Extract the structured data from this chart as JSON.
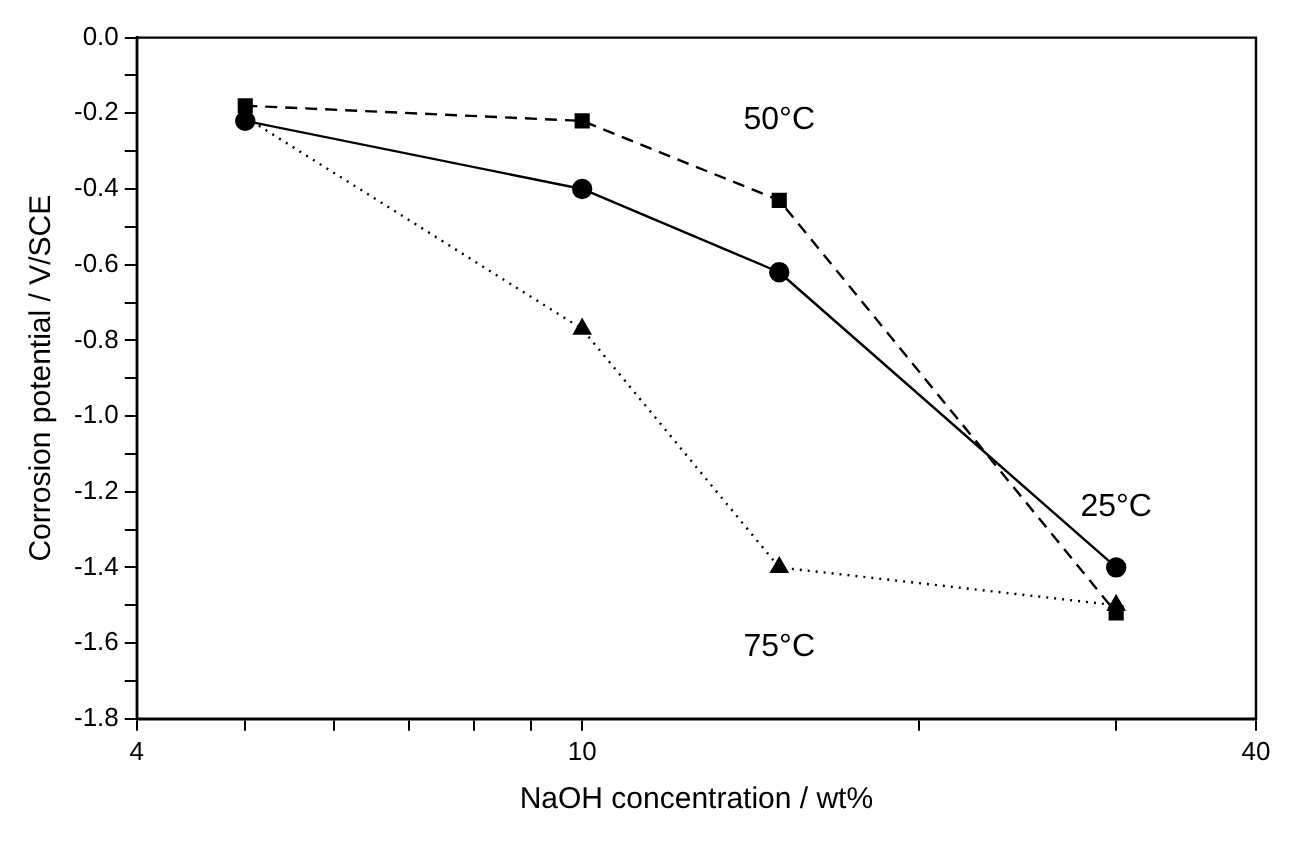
{
  "chart_data": {
    "type": "line",
    "xlabel": "NaOH concentration / wt%",
    "ylabel": "Corrosion potential / V/SCE",
    "x": [
      5,
      10,
      15,
      30
    ],
    "series": [
      {
        "name": "25°C",
        "color": "#000000",
        "values": [
          -0.22,
          -0.4,
          -0.62,
          -1.4
        ],
        "marker": "circle",
        "line_style": "solid"
      },
      {
        "name": "50°C",
        "color": "#000000",
        "values": [
          -0.18,
          -0.22,
          -0.43,
          -1.52
        ],
        "marker": "square",
        "line_style": "dashed"
      },
      {
        "name": "75°C",
        "color": "#000000",
        "values": [
          -0.21,
          -0.77,
          -1.4,
          -1.5
        ],
        "marker": "triangle",
        "line_style": "dotted"
      }
    ],
    "log": "x",
    "xlim": [
      4,
      40
    ],
    "xticks": [
      4,
      {
        "value": 5,
        "label": null
      },
      {
        "value": 6,
        "label": null
      },
      {
        "value": 7,
        "label": null
      },
      {
        "value": 8,
        "label": null
      },
      {
        "value": 9,
        "label": null
      },
      10,
      {
        "value": 20,
        "label": null
      },
      {
        "value": 30,
        "label": null
      },
      40
    ],
    "ylim": [
      -1.8,
      0
    ],
    "yticks": [
      {
        "value": -1.8,
        "label": "-1.8"
      },
      {
        "value": -1.7,
        "label": null
      },
      {
        "value": -1.6,
        "label": "-1.6"
      },
      {
        "value": -1.5,
        "label": null
      },
      {
        "value": -1.4,
        "label": "-1.4"
      },
      {
        "value": -1.3,
        "label": null
      },
      {
        "value": -1.2,
        "label": "-1.2"
      },
      {
        "value": -1.1,
        "label": null
      },
      {
        "value": -1.0,
        "label": "-1.0"
      },
      {
        "value": -0.9,
        "label": null
      },
      {
        "value": -0.8,
        "label": "-0.8"
      },
      {
        "value": -0.7,
        "label": null
      },
      {
        "value": -0.6,
        "label": "-0.6"
      },
      {
        "value": -0.5,
        "label": null
      },
      {
        "value": -0.4,
        "label": "-0.4"
      },
      {
        "value": -0.3,
        "label": null
      },
      {
        "value": -0.2,
        "label": "-0.2"
      },
      {
        "value": -0.1,
        "label": null
      },
      {
        "value": 0,
        "label": "0.0"
      }
    ],
    "grid": false,
    "legend": false
  }
}
